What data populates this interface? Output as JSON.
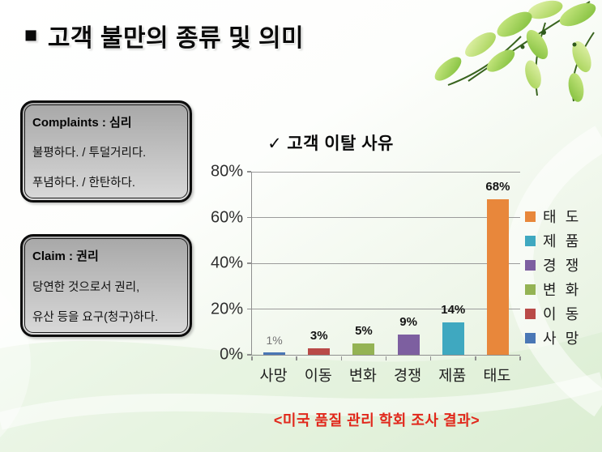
{
  "header": {
    "bullet": "■",
    "title": "고객 불만의 종류 및 의미"
  },
  "notes": [
    {
      "title": "Complaints : 심리",
      "lines": [
        "불평하다. / 투덜거리다.",
        "푸념하다. / 한탄하다."
      ]
    },
    {
      "title": "Claim : 권리",
      "lines": [
        "당연한 것으로서 권리,",
        "유산 등을 요구(청구)하다."
      ]
    }
  ],
  "chart_data": {
    "type": "bar",
    "title": "고객 이탈 사유",
    "title_check": "✓",
    "categories": [
      "사망",
      "이동",
      "변화",
      "경쟁",
      "제품",
      "태도"
    ],
    "values": [
      1,
      3,
      5,
      9,
      14,
      68
    ],
    "points": [
      {
        "category": "사망",
        "value": 1,
        "label": "1%",
        "color": "#4a77b5",
        "label_color": "#737373",
        "label_bold": false
      },
      {
        "category": "이동",
        "value": 3,
        "label": "3%",
        "color": "#b94a48",
        "label_color": "#141414",
        "label_bold": true
      },
      {
        "category": "변화",
        "value": 5,
        "label": "5%",
        "color": "#94b354",
        "label_color": "#141414",
        "label_bold": true
      },
      {
        "category": "경쟁",
        "value": 9,
        "label": "9%",
        "color": "#7d5fa0",
        "label_color": "#141414",
        "label_bold": true
      },
      {
        "category": "제품",
        "value": 14,
        "label": "14%",
        "color": "#3fa8c0",
        "label_color": "#141414",
        "label_bold": true
      },
      {
        "category": "태도",
        "value": 68,
        "label": "68%",
        "color": "#e8873b",
        "label_color": "#141414",
        "label_bold": true
      }
    ],
    "xlabel": "",
    "ylabel": "",
    "ylim": [
      0,
      80
    ],
    "ytick_step": 20,
    "ytick_labels": [
      "0%",
      "20%",
      "40%",
      "60%",
      "80%"
    ],
    "grid": true,
    "legend_position": "right",
    "legend_order_note": "legend listed top-to-bottom in reverse category order"
  },
  "caption": "<미국 품질 관리 학회 조사 결과>",
  "colors": {
    "caption_red": "#e1281c",
    "note_box_fill": "#bfbfbf",
    "axis_gray": "#8f8f8f"
  }
}
